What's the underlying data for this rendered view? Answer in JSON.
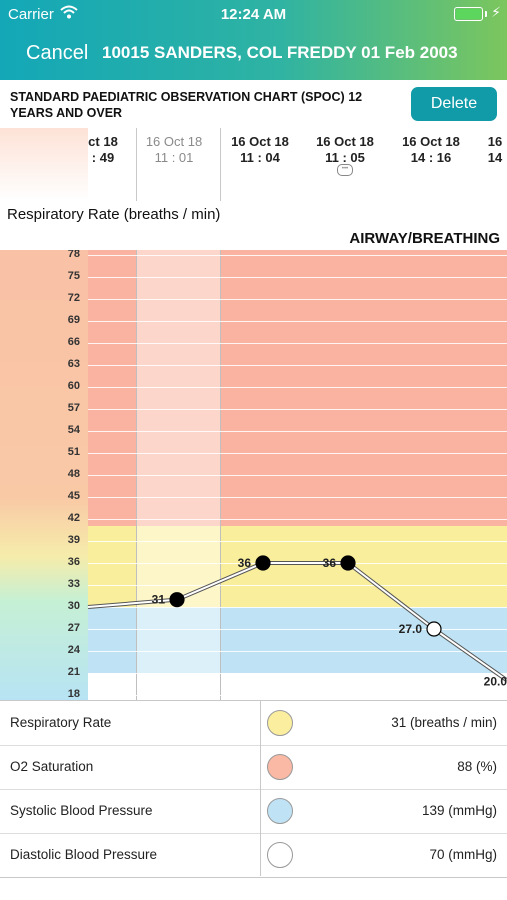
{
  "status_bar": {
    "carrier": "Carrier",
    "time": "12:24 AM"
  },
  "nav": {
    "cancel": "Cancel",
    "patient": "10015 SANDERS, COL FREDDY 01 Feb 2003"
  },
  "title": {
    "text": "STANDARD PAEDIATRIC OBSERVATION CHART  (SPOC) 12 YEARS AND OVER",
    "delete": "Delete"
  },
  "timeline": [
    {
      "date": "ct 18",
      "time": ": 49"
    },
    {
      "date": "16 Oct 18",
      "time": "11 : 01"
    },
    {
      "date": "16 Oct 18",
      "time": "11 : 04"
    },
    {
      "date": "16 Oct 18",
      "time": "11 : 05"
    },
    {
      "date": "16 Oct 18",
      "time": "14 : 16"
    },
    {
      "date": "16",
      "time": "14"
    }
  ],
  "section": {
    "title": "Respiratory Rate (breaths / min)",
    "group": "AIRWAY/BREATHING"
  },
  "colors": {
    "red_zone": "#f9b3a0",
    "yellow_zone": "#f9ee9c",
    "blue_zone": "#bfe3f5",
    "white_zone": "#ffffff",
    "accent": "#119aa7"
  },
  "chart_data": {
    "type": "line",
    "y_ticks": [
      "78",
      "75",
      "72",
      "69",
      "66",
      "63",
      "60",
      "57",
      "54",
      "51",
      "48",
      "45",
      "42",
      "39",
      "36",
      "33",
      "30",
      "27",
      "24",
      "21",
      "18"
    ],
    "ylim": [
      18,
      78
    ],
    "zones": [
      {
        "from": 41,
        "to": 78,
        "color": "#f9b3a0"
      },
      {
        "from": 30,
        "to": 41,
        "color": "#f9ee9c"
      },
      {
        "from": 21,
        "to": 30,
        "color": "#bfe3f5"
      },
      {
        "from": 18,
        "to": 21,
        "color": "#ffffff"
      }
    ],
    "points": [
      {
        "value": 31,
        "label": "31",
        "style": "filled"
      },
      {
        "value": 36,
        "label": "36",
        "style": "filled"
      },
      {
        "value": 36,
        "label": "36",
        "style": "filled"
      },
      {
        "value": 27.0,
        "label": "27.0",
        "style": "open"
      },
      {
        "value": 20.0,
        "label": "20.0",
        "style": "none"
      }
    ],
    "offscreen_start_value": 30
  },
  "legend": [
    {
      "name": "Respiratory Rate",
      "value": "31  (breaths / min)",
      "color": "#fbee9f"
    },
    {
      "name": "O2 Saturation",
      "value": "88  (%)",
      "color": "#f9b9a4"
    },
    {
      "name": "Systolic Blood Pressure",
      "value": "139  (mmHg)",
      "color": "#bfe3f5"
    },
    {
      "name": "Diastolic Blood Pressure",
      "value": "70  (mmHg)",
      "color": "#ffffff"
    }
  ]
}
